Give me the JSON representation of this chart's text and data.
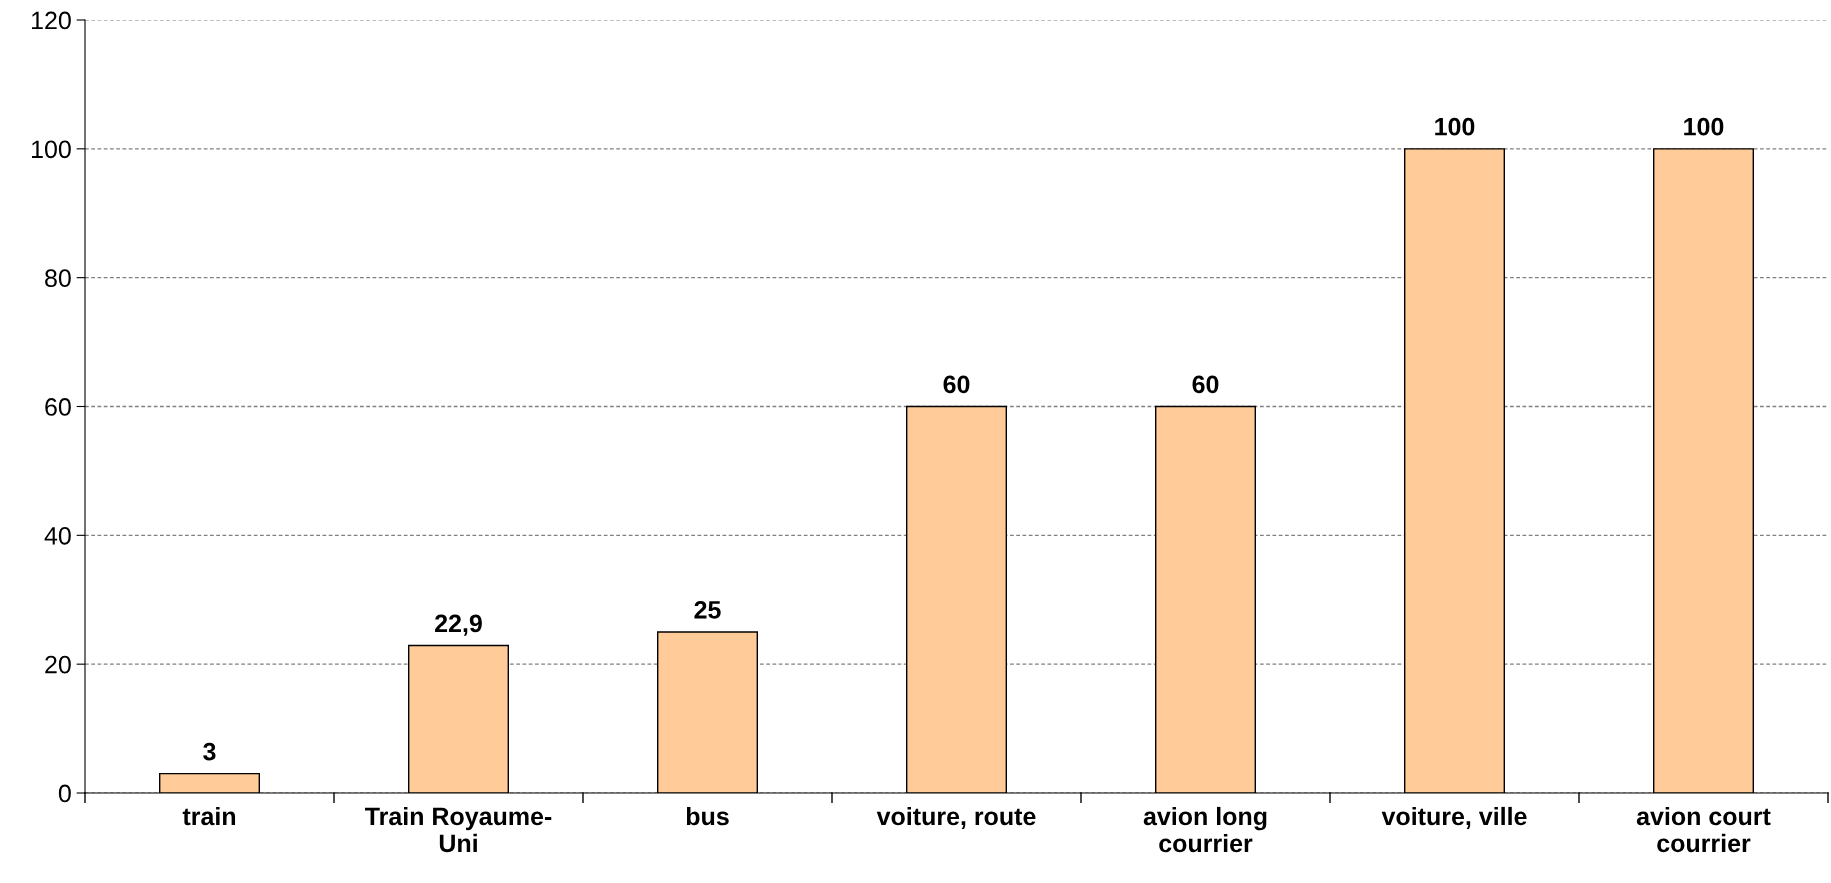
{
  "chart_data": {
    "type": "bar",
    "categories": [
      "train",
      "Train Royaume-\nUni",
      "bus",
      "voiture, route",
      "avion long\ncourrier",
      "voiture, ville",
      "avion court\ncourrier"
    ],
    "values": [
      3,
      22.9,
      25,
      60,
      60,
      100,
      100
    ],
    "value_labels": [
      "3",
      "22,9",
      "25",
      "60",
      "60",
      "100",
      "100"
    ],
    "color": "#ffcc99",
    "ylim": [
      0,
      120
    ],
    "yticks": [
      0,
      20,
      40,
      60,
      80,
      100,
      120
    ],
    "grid": "y"
  }
}
